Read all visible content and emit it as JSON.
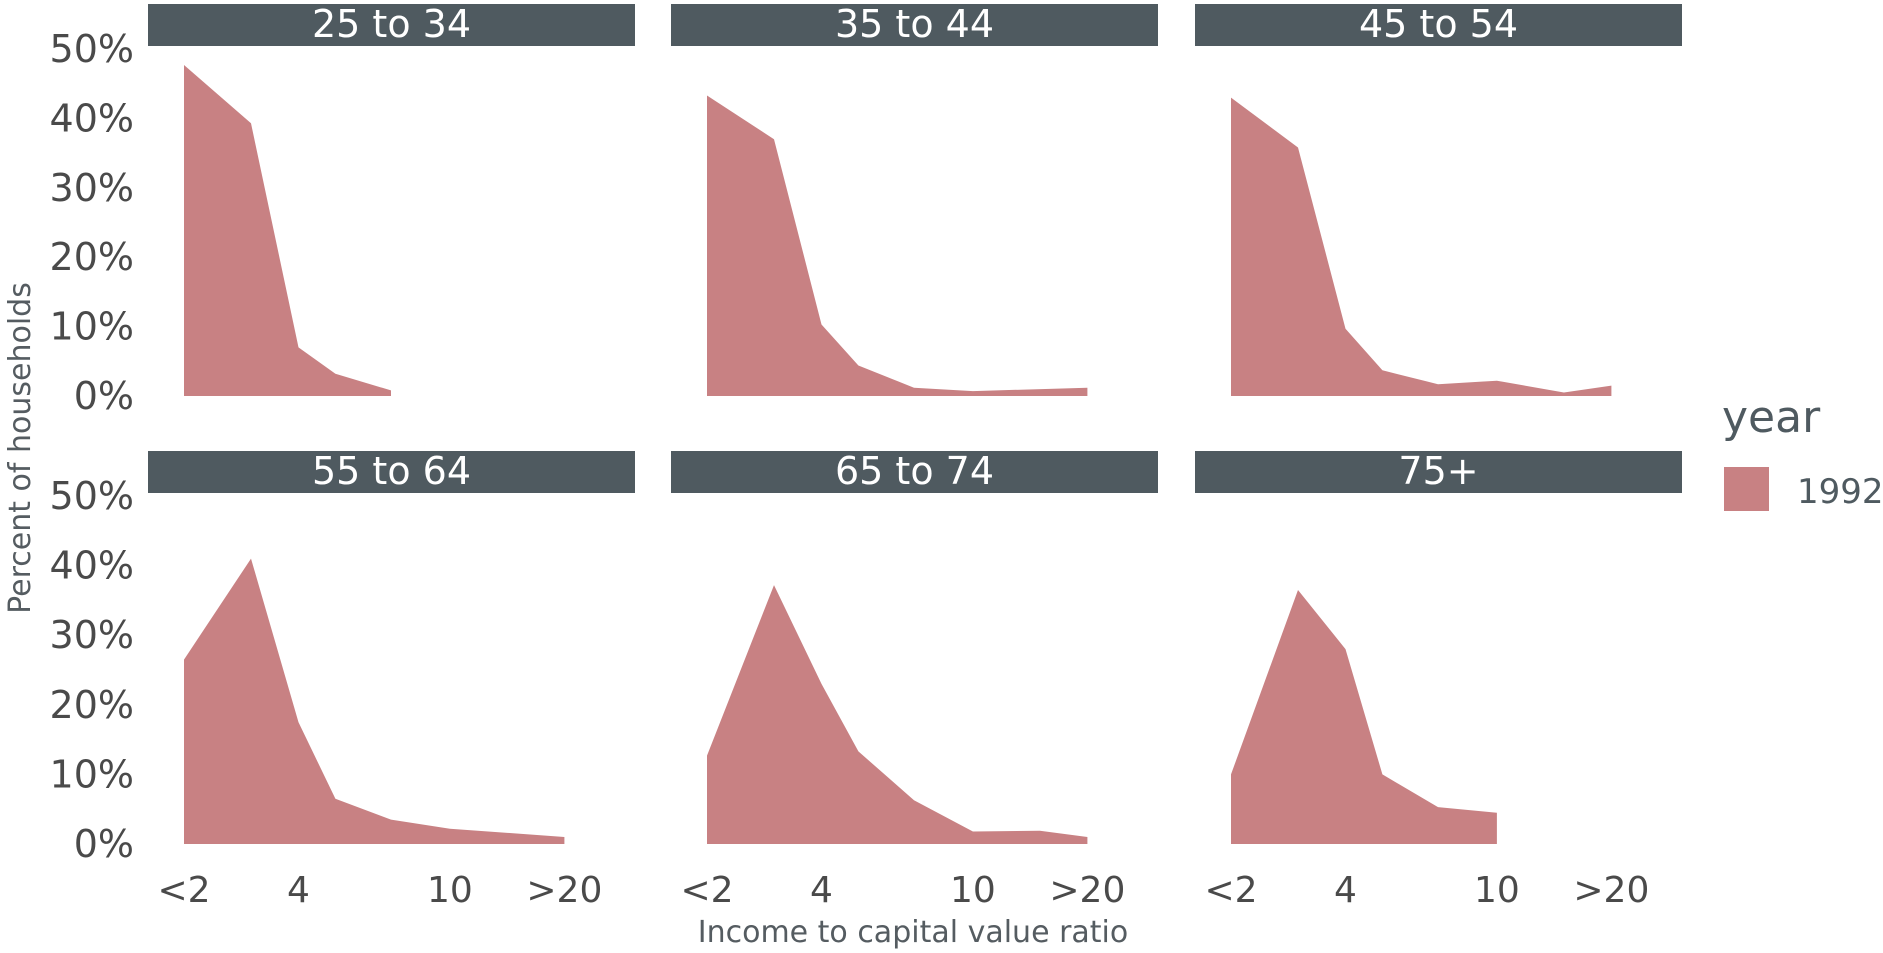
{
  "chart_data": {
    "type": "area",
    "xlabel": "Income to capital value ratio",
    "ylabel": "Percent of households",
    "ylim": [
      0,
      0.5
    ],
    "yticks": [
      0,
      0.1,
      0.2,
      0.3,
      0.4,
      0.5
    ],
    "ytick_labels": [
      "0%",
      "10%",
      "20%",
      "30%",
      "40%",
      "50%"
    ],
    "xlim": [
      2,
      20
    ],
    "xticks": [
      2,
      4,
      10,
      20
    ],
    "xtick_labels": [
      "<2",
      "4",
      "10",
      ">20"
    ],
    "grid": false,
    "legend": {
      "title": "year",
      "position": "right",
      "entries": [
        {
          "label": "1992",
          "color": "#c88183"
        }
      ]
    },
    "color": "#c88183",
    "panels": [
      {
        "label": "25 to 34",
        "series": [
          {
            "name": "1992",
            "x": [
              2,
              3,
              4,
              5,
              7
            ],
            "y": [
              0.477,
              0.393,
              0.07,
              0.032,
              0.008
            ]
          }
        ]
      },
      {
        "label": "35 to 44",
        "series": [
          {
            "name": "1992",
            "x": [
              2,
              3,
              4,
              5,
              7,
              10,
              20
            ],
            "y": [
              0.433,
              0.37,
              0.103,
              0.044,
              0.012,
              0.007,
              0.012
            ]
          }
        ]
      },
      {
        "label": "45 to 54",
        "series": [
          {
            "name": "1992",
            "x": [
              2,
              3,
              4,
              5,
              7,
              10,
              15,
              20
            ],
            "y": [
              0.43,
              0.358,
              0.097,
              0.037,
              0.017,
              0.022,
              0.005,
              0.015
            ]
          }
        ]
      },
      {
        "label": "55 to 64",
        "series": [
          {
            "name": "1992",
            "x": [
              2,
              3,
              4,
              5,
              7,
              10,
              20
            ],
            "y": [
              0.265,
              0.41,
              0.175,
              0.065,
              0.035,
              0.022,
              0.01
            ]
          }
        ]
      },
      {
        "label": "65 to 74",
        "series": [
          {
            "name": "1992",
            "x": [
              2,
              3,
              4,
              5,
              7,
              10,
              15,
              20
            ],
            "y": [
              0.127,
              0.372,
              0.23,
              0.133,
              0.063,
              0.018,
              0.019,
              0.01
            ]
          }
        ]
      },
      {
        "label": "75+",
        "series": [
          {
            "name": "1992",
            "x": [
              2,
              3,
              4,
              5,
              7,
              10
            ],
            "y": [
              0.1,
              0.365,
              0.28,
              0.1,
              0.053,
              0.045
            ]
          }
        ]
      }
    ]
  }
}
